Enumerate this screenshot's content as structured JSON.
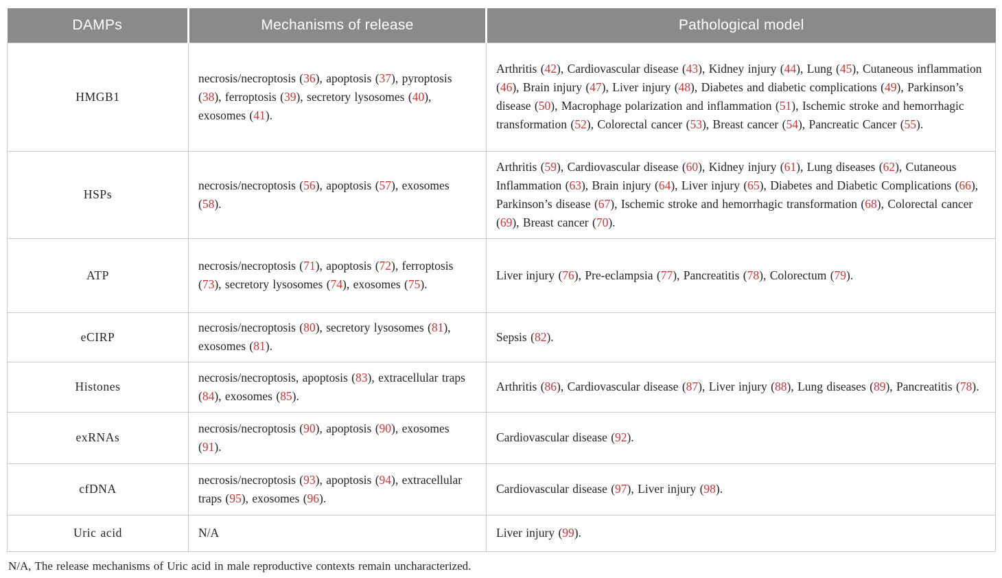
{
  "colors": {
    "header_bg": "#8a8a8a",
    "header_text": "#ffffff",
    "body_text": "#232323",
    "ref_red": "#cb3434",
    "border": "#c9c9c9"
  },
  "table": {
    "columns": [
      "DAMPs",
      "Mechanisms of release",
      "Pathological model"
    ],
    "rows": [
      {
        "damp": "HMGB1",
        "mechanisms": "necrosis/necroptosis (36), apoptosis (37), pyroptosis (38), ferroptosis (39), secretory lysosomes (40), exosomes (41).",
        "pathology": "Arthritis (42), Cardiovascular disease (43), Kidney injury (44), Lung (45), Cutaneous inflammation (46), Brain injury (47), Liver injury (48), Diabetes and diabetic complications (49), Parkinson’s disease (50), Macrophage polarization and inflammation (51), Ischemic stroke and hemorrhagic transformation (52), Colorectal cancer (53), Breast cancer (54), Pancreatic Cancer (55)."
      },
      {
        "damp": "HSPs",
        "mechanisms": "necrosis/necroptosis (56), apoptosis (57), exosomes (58).",
        "pathology": "Arthritis (59), Cardiovascular disease (60), Kidney injury (61), Lung diseases (62), Cutaneous Inflammation (63), Brain injury (64), Liver injury (65), Diabetes and Diabetic Complications (66), Parkinson’s disease (67), Ischemic stroke and hemorrhagic transformation (68), Colorectal cancer (69), Breast cancer (70)."
      },
      {
        "damp": "ATP",
        "mechanisms": "necrosis/necroptosis (71), apoptosis (72), ferroptosis (73), secretory lysosomes (74), exosomes (75).",
        "pathology": "Liver injury (76), Pre-eclampsia (77), Pancreatitis (78), Colorectum (79)."
      },
      {
        "damp": "eCIRP",
        "mechanisms": "necrosis/necroptosis (80), secretory lysosomes (81), exosomes (81).",
        "pathology": "Sepsis (82)."
      },
      {
        "damp": "Histones",
        "mechanisms": "necrosis/necroptosis, apoptosis (83), extracellular traps (84), exosomes (85).",
        "pathology": "Arthritis (86), Cardiovascular disease (87), Liver injury (88), Lung diseases (89), Pancreatitis (78)."
      },
      {
        "damp": "exRNAs",
        "mechanisms": "necrosis/necroptosis (90), apoptosis (90), exosomes (91).",
        "pathology": "Cardiovascular disease (92)."
      },
      {
        "damp": "cfDNA",
        "mechanisms": "necrosis/necroptosis (93), apoptosis (94), extracellular traps (95), exosomes (96).",
        "pathology": "Cardiovascular disease (97), Liver injury (98)."
      },
      {
        "damp": "Uric acid",
        "mechanisms": "N/A",
        "pathology": "Liver injury (99)."
      }
    ],
    "footnote": "N/A, The release mechanisms of Uric acid in male reproductive contexts remain uncharacterized."
  }
}
